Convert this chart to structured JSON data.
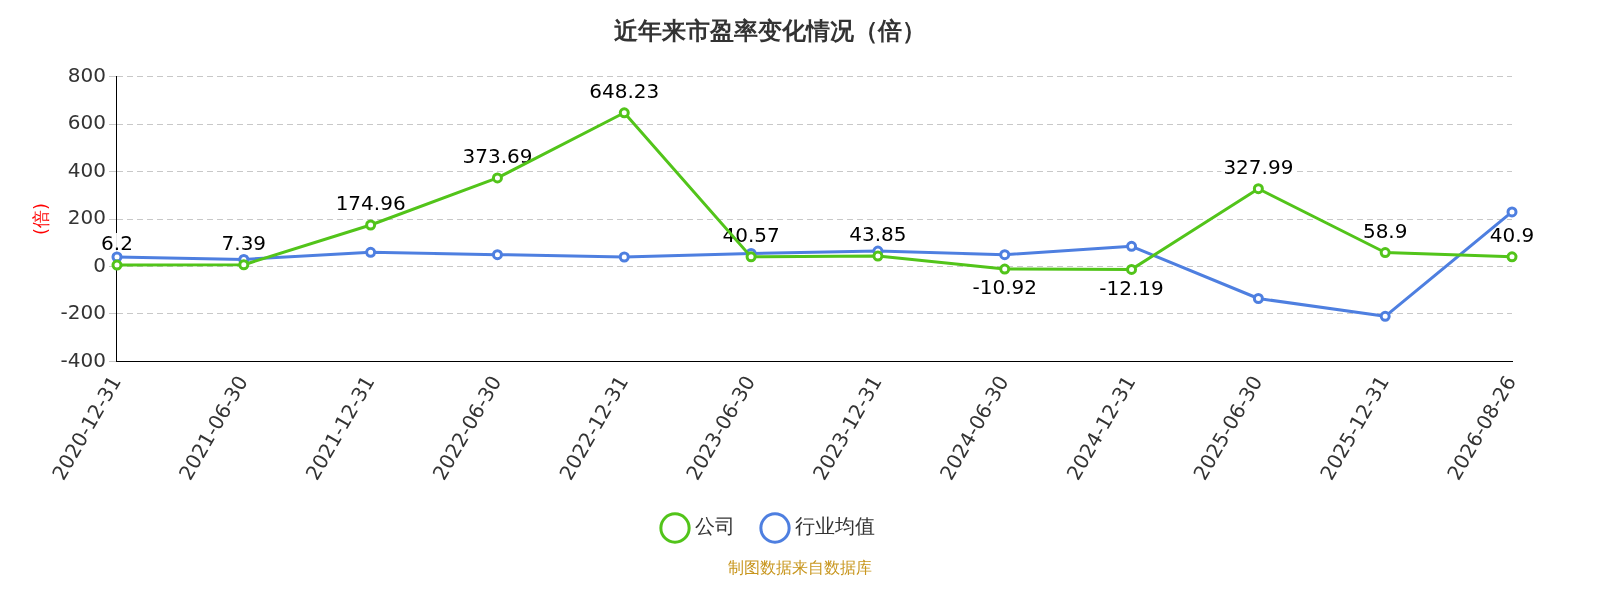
{
  "chart_data": {
    "type": "line",
    "title": "近年来市盈率变化情况（倍）",
    "ylabel": "(倍)",
    "categories": [
      "2020-12-31",
      "2021-06-30",
      "2021-12-31",
      "2022-06-30",
      "2022-12-31",
      "2023-06-30",
      "2023-12-31",
      "2024-06-30",
      "2024-12-31",
      "2025-06-30",
      "2025-12-31",
      "2026-08-26"
    ],
    "series": [
      {
        "name": "公司",
        "color": "#52c41a",
        "values": [
          6.2,
          7.39,
          174.96,
          373.69,
          648.23,
          40.57,
          43.85,
          -10.92,
          -12.19,
          327.99,
          58.9,
          40.9
        ],
        "data_labels": true
      },
      {
        "name": "行业均值",
        "color": "#4e7fe0",
        "values": [
          40,
          30,
          60,
          50,
          40,
          55,
          65,
          50,
          85,
          -135,
          -210,
          230
        ]
      }
    ],
    "ylim": [
      -400,
      800
    ],
    "yticks": [
      -400,
      -200,
      0,
      200,
      400,
      600,
      800
    ],
    "grid": "y",
    "legend": "bottom",
    "marker": "circle",
    "line_style": "solid",
    "annotations": [
      "制图数据来自数据库"
    ]
  }
}
